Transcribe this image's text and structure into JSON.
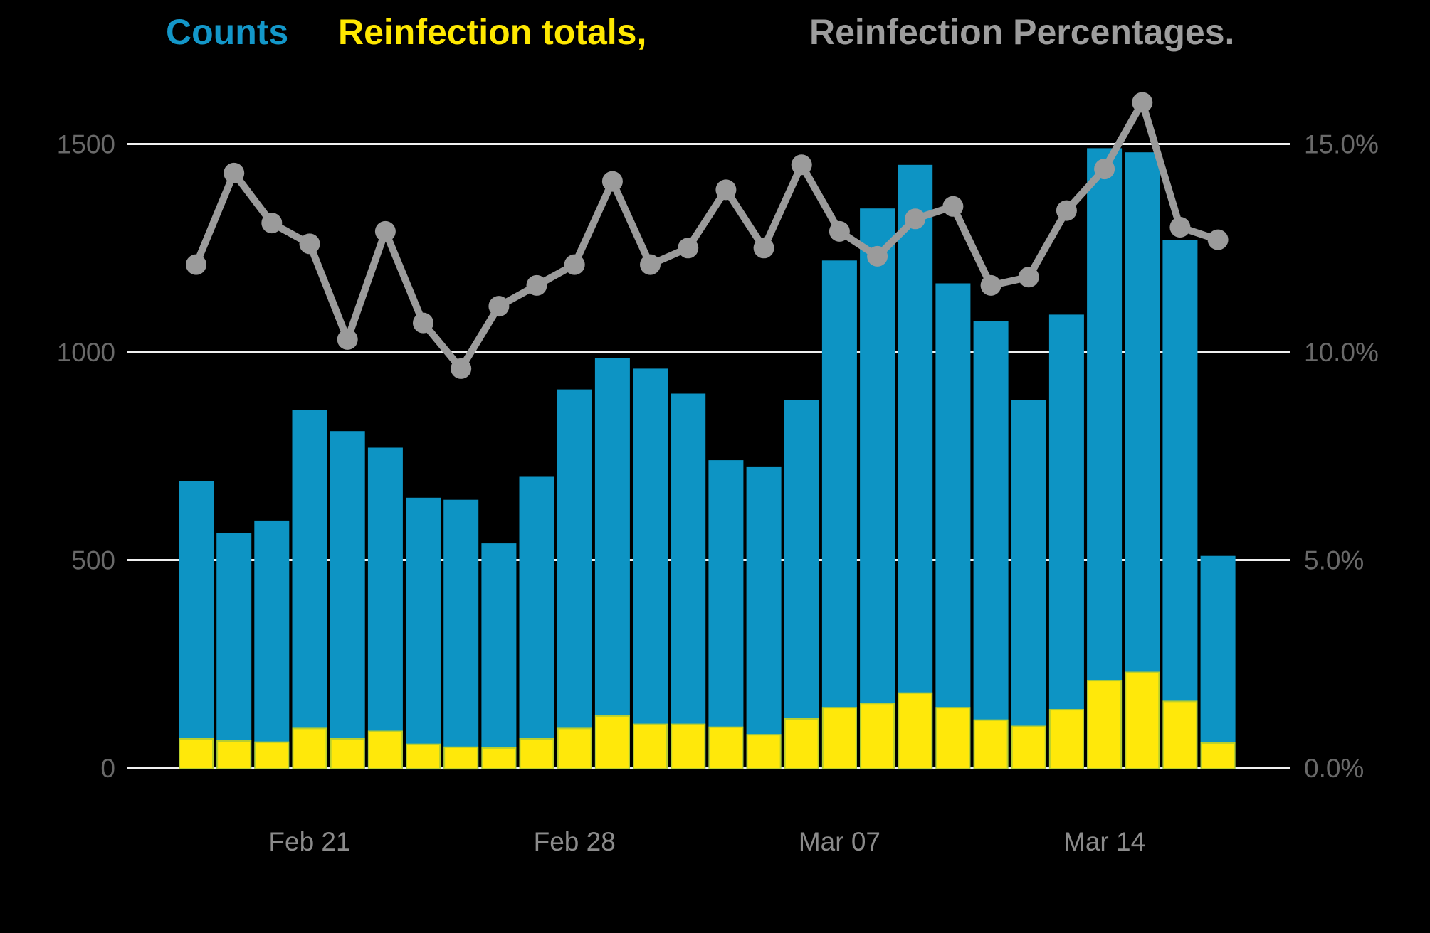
{
  "title": {
    "counts_label": "Counts",
    "reinfection_totals_label": "Reinfection totals,",
    "percentages_label": "Reinfection Percentages."
  },
  "colors": {
    "background": "#000000",
    "counts_bar": "#0D94C4",
    "reinfection_bar": "#FFE80A",
    "reinfection_bar_outline": "#B9CF2E",
    "percentage_line": "#9B9B9B",
    "gridline": "#F0F0F0",
    "y_axis_label": "#696969",
    "x_axis_label": "#8B8B8B",
    "title_counts": "#1397C9",
    "title_reinfections": "#FFE800",
    "title_percentages": "#9D9D9D"
  },
  "axes": {
    "left": {
      "tick_labels": [
        "1500",
        "1000",
        "500",
        "0"
      ],
      "tick_values": [
        1500,
        1000,
        500,
        0
      ],
      "range": [
        0,
        1500
      ]
    },
    "right": {
      "tick_labels": [
        "15.0%",
        "10.0%",
        "5.0%",
        "0.0%"
      ],
      "tick_values": [
        15,
        10,
        5,
        0
      ],
      "range": [
        0,
        15
      ]
    },
    "x": {
      "tick_labels": [
        "Feb 21",
        "Feb 28",
        "Mar 07",
        "Mar 14"
      ],
      "tick_day_indices": [
        3,
        10,
        17,
        24
      ]
    }
  },
  "chart_data": {
    "type": "bar",
    "subtype": "overlaid-bars-with-line-overlay",
    "title": "Counts, Reinfection totals, Reinfection Percentages.",
    "grid": "horizontal",
    "legend_position": "title-as-legend",
    "categories": [
      "Feb 18",
      "Feb 19",
      "Feb 20",
      "Feb 21",
      "Feb 22",
      "Feb 23",
      "Feb 24",
      "Feb 25",
      "Feb 26",
      "Feb 27",
      "Feb 28",
      "Mar 01",
      "Mar 02",
      "Mar 03",
      "Mar 04",
      "Mar 05",
      "Mar 06",
      "Mar 07",
      "Mar 08",
      "Mar 09",
      "Mar 10",
      "Mar 11",
      "Mar 12",
      "Mar 13",
      "Mar 14",
      "Mar 15",
      "Mar 16",
      "Mar 17"
    ],
    "x_tick_labels": [
      "Feb 21",
      "Feb 28",
      "Mar 07",
      "Mar 14"
    ],
    "x_tick_positions": [
      3,
      10,
      17,
      24
    ],
    "left_axis": {
      "ticks": [
        0,
        500,
        1000,
        1500
      ],
      "ylim": [
        0,
        1650
      ]
    },
    "right_axis": {
      "ticks_percent": [
        0.0,
        5.0,
        10.0,
        15.0
      ],
      "ylim_percent": [
        0,
        16.5
      ]
    },
    "series": [
      {
        "name": "Counts",
        "type": "bar",
        "axis": "left",
        "color": "#0D94C4",
        "values": [
          690,
          565,
          595,
          860,
          810,
          770,
          650,
          645,
          540,
          700,
          910,
          985,
          960,
          900,
          740,
          725,
          885,
          1220,
          1345,
          1450,
          1165,
          1075,
          885,
          1090,
          1490,
          1480,
          1270,
          510
        ]
      },
      {
        "name": "Reinfection totals",
        "type": "bar",
        "axis": "left",
        "color": "#FFE80A",
        "values": [
          70,
          65,
          62,
          95,
          70,
          88,
          57,
          50,
          48,
          70,
          95,
          125,
          105,
          105,
          98,
          80,
          118,
          145,
          155,
          180,
          145,
          115,
          100,
          140,
          210,
          230,
          160,
          60
        ]
      },
      {
        "name": "Reinfection Percentages",
        "type": "line",
        "axis": "right",
        "color": "#9B9B9B",
        "values": [
          12.1,
          14.3,
          13.1,
          12.6,
          10.3,
          12.9,
          10.7,
          9.6,
          11.1,
          11.6,
          12.1,
          14.1,
          12.1,
          12.5,
          13.9,
          12.5,
          14.5,
          12.9,
          12.3,
          13.2,
          13.5,
          11.6,
          11.8,
          13.4,
          14.4,
          16.0,
          13.0,
          12.7
        ]
      }
    ]
  }
}
